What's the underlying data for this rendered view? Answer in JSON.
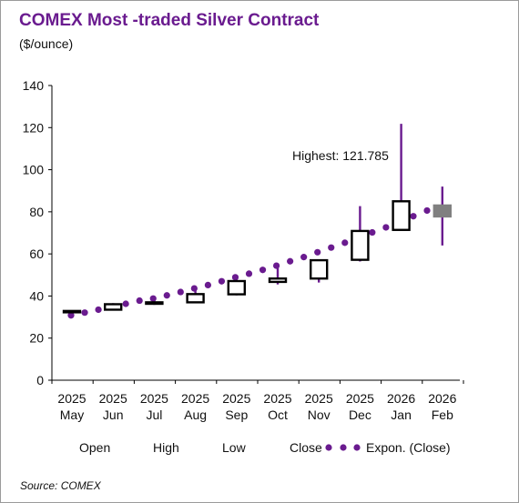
{
  "header": {
    "title": "COMEX Most -traded Silver Contract",
    "unit": "($/ounce)"
  },
  "footer": {
    "source": "Source: COMEX"
  },
  "colors": {
    "title": "#6a1b8f",
    "wick": "#6a1b8f",
    "candle_border": "#000000",
    "last_candle_fill": "#808080",
    "trend_dots": "#6a1b8f"
  },
  "chart_data": {
    "type": "candlestick",
    "categories": [
      [
        "2025",
        "May"
      ],
      [
        "2025",
        "Jun"
      ],
      [
        "2025",
        "Jul"
      ],
      [
        "2025",
        "Aug"
      ],
      [
        "2025",
        "Sep"
      ],
      [
        "2025",
        "Oct"
      ],
      [
        "2025",
        "Nov"
      ],
      [
        "2025",
        "Dec"
      ],
      [
        "2026",
        "Jan"
      ],
      [
        "2026",
        "Feb"
      ]
    ],
    "ylim": [
      0,
      140
    ],
    "yticks": [
      0,
      20,
      40,
      60,
      80,
      100,
      120,
      140
    ],
    "ohlc": [
      {
        "open": 32.6,
        "high": 33.2,
        "low": 32.3,
        "close": 32.9
      },
      {
        "open": 33.5,
        "high": 36.6,
        "low": 33.1,
        "close": 36.1
      },
      {
        "open": 36.3,
        "high": 38.6,
        "low": 35.8,
        "close": 37.0
      },
      {
        "open": 37.0,
        "high": 42.6,
        "low": 36.9,
        "close": 40.9
      },
      {
        "open": 40.8,
        "high": 47.9,
        "low": 40.3,
        "close": 47.1
      },
      {
        "open": 46.7,
        "high": 53.7,
        "low": 45.5,
        "close": 48.3
      },
      {
        "open": 48.3,
        "high": 57.4,
        "low": 46.4,
        "close": 57.0
      },
      {
        "open": 57.2,
        "high": 82.7,
        "low": 56.4,
        "close": 70.9
      },
      {
        "open": 71.4,
        "high": 121.785,
        "low": 71.2,
        "close": 85.0
      },
      {
        "open": 77.8,
        "high": 92.0,
        "low": 64.0,
        "close": 83.0
      }
    ],
    "trend": {
      "name": "Expon. (Close)",
      "values": [
        30.8,
        32.1,
        33.5,
        34.9,
        36.3,
        37.8,
        38.8,
        40.3,
        41.9,
        43.6,
        45.2,
        47.0,
        48.9,
        50.6,
        52.4,
        54.4,
        56.5,
        58.5,
        60.8,
        63.0,
        65.3,
        67.8,
        70.2,
        72.6,
        75.3,
        77.9,
        80.6
      ]
    },
    "annotation": {
      "text": "Highest: 121.785"
    },
    "legend": {
      "position": "bottom",
      "items": [
        "Open",
        "High",
        "Low",
        "Close",
        "Expon. (Close)"
      ]
    }
  }
}
